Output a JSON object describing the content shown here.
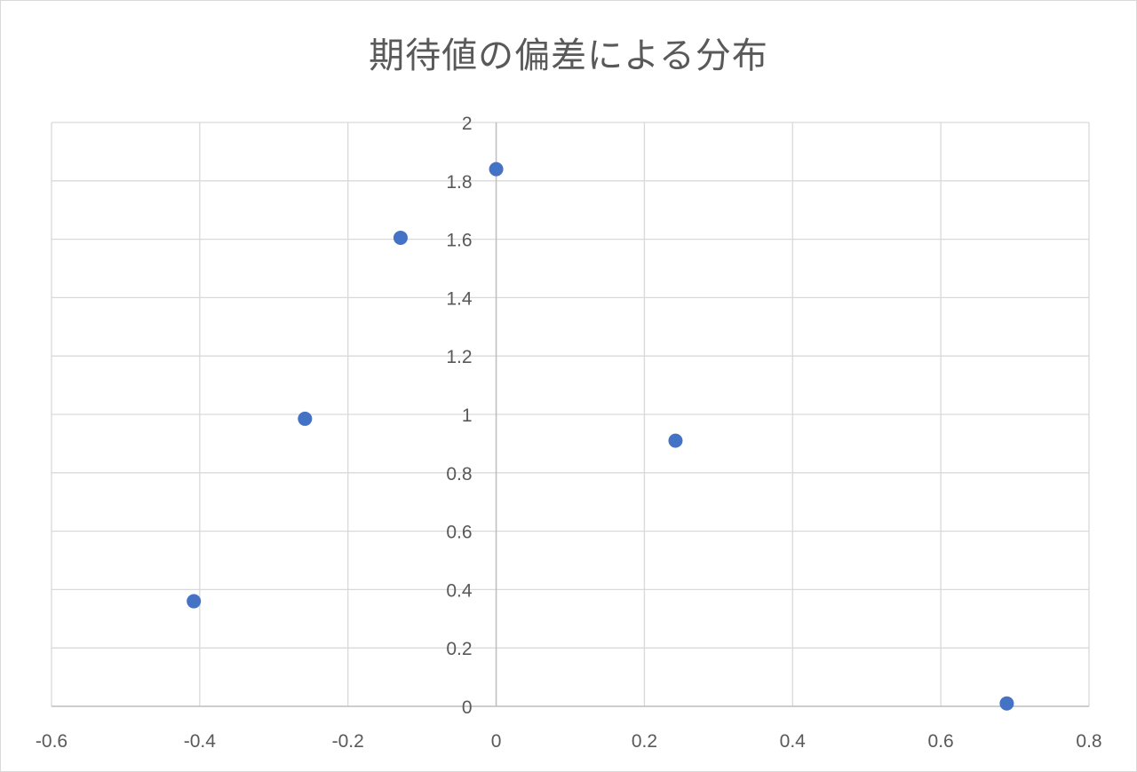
{
  "chart_data": {
    "type": "scatter",
    "title": "期待値の偏差による分布",
    "xlabel": "",
    "ylabel": "",
    "xlim": [
      -0.6,
      0.8
    ],
    "ylim": [
      0,
      2
    ],
    "x_ticks": [
      "-0.6",
      "-0.4",
      "-0.2",
      "0",
      "0.2",
      "0.4",
      "0.6",
      "0.8"
    ],
    "y_ticks": [
      "0",
      "0.2",
      "0.4",
      "0.6",
      "0.8",
      "1",
      "1.2",
      "1.4",
      "1.6",
      "1.8",
      "2"
    ],
    "grid": true,
    "legend": "none",
    "marker_color": "#4472c4",
    "points": [
      {
        "x": -0.408,
        "y": 0.36
      },
      {
        "x": -0.258,
        "y": 0.985
      },
      {
        "x": -0.129,
        "y": 1.605
      },
      {
        "x": 0.0,
        "y": 1.84
      },
      {
        "x": 0.242,
        "y": 0.91
      },
      {
        "x": 0.689,
        "y": 0.01
      }
    ]
  }
}
